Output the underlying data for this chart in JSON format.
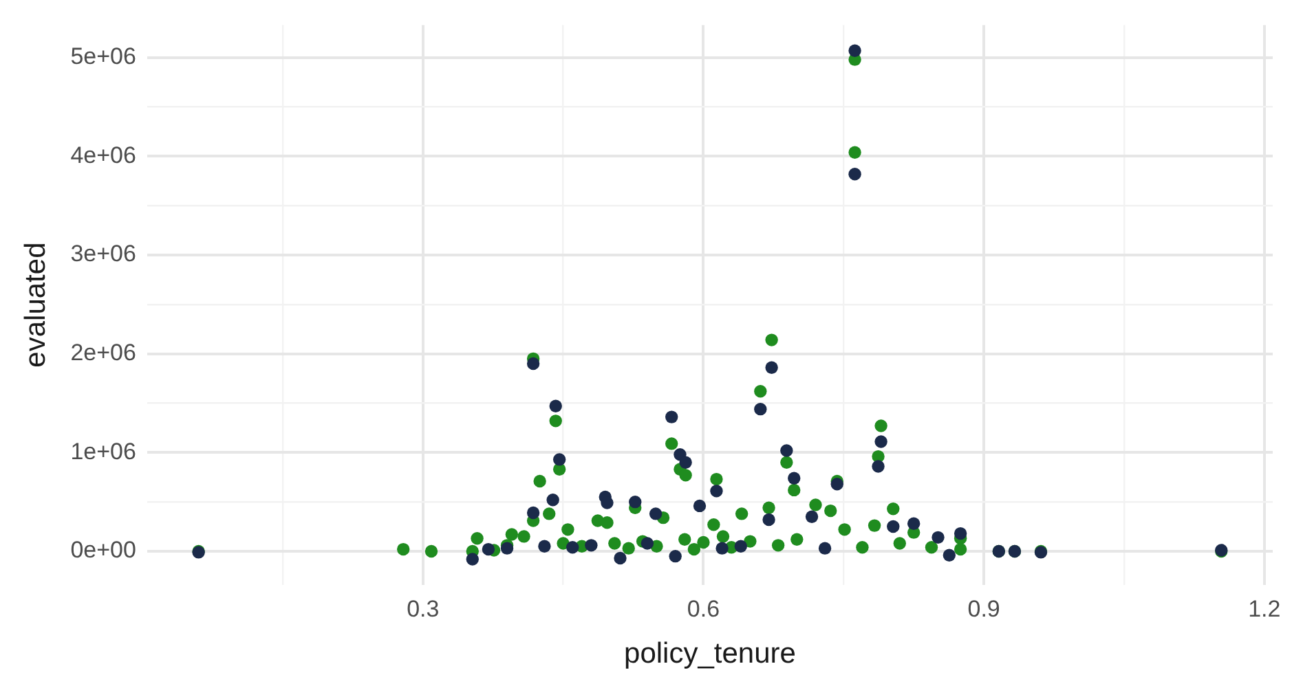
{
  "chart_data": {
    "type": "scatter",
    "xlabel": "policy_tenure",
    "ylabel": "evaluated",
    "grid": true,
    "legend": false,
    "marker": "circle",
    "xlim": [
      0.005,
      1.209
    ],
    "ylim": [
      -340000,
      5330000
    ],
    "xticks": [
      {
        "value": 0.15,
        "label": null
      },
      0.3,
      {
        "value": 0.45,
        "label": null
      },
      0.6,
      {
        "value": 0.75,
        "label": null
      },
      0.9,
      {
        "value": 1.05,
        "label": null
      },
      1.2
    ],
    "yticks": [
      {
        "value": 0,
        "label": "0e+00"
      },
      {
        "value": 500000,
        "label": null
      },
      {
        "value": 1000000,
        "label": "1e+06"
      },
      {
        "value": 1500000,
        "label": null
      },
      {
        "value": 2000000,
        "label": "2e+06"
      },
      {
        "value": 2500000,
        "label": null
      },
      {
        "value": 3000000,
        "label": "3e+06"
      },
      {
        "value": 3500000,
        "label": null
      },
      {
        "value": 4000000,
        "label": "4e+06"
      },
      {
        "value": 4500000,
        "label": null
      },
      {
        "value": 5000000,
        "label": "5e+06"
      }
    ],
    "series": [
      {
        "color": "#1b2a4a",
        "x": [
          0.06,
          0.353,
          0.37,
          0.39,
          0.418,
          0.418,
          0.43,
          0.439,
          0.442,
          0.446,
          0.46,
          0.48,
          0.495,
          0.497,
          0.511,
          0.527,
          0.54,
          0.549,
          0.566,
          0.57,
          0.575,
          0.581,
          0.596,
          0.614,
          0.62,
          0.64,
          0.661,
          0.67,
          0.673,
          0.689,
          0.697,
          0.716,
          0.73,
          0.743,
          0.762,
          0.762,
          0.787,
          0.79,
          0.803,
          0.825,
          0.851,
          0.863,
          0.875,
          0.916,
          0.933,
          0.961,
          1.154
        ],
        "values": [
          -10000,
          -80000,
          20000,
          30000,
          1900000,
          390000,
          50000,
          520000,
          1470000,
          930000,
          40000,
          60000,
          550000,
          490000,
          -70000,
          500000,
          80000,
          380000,
          1360000,
          -50000,
          980000,
          900000,
          460000,
          610000,
          30000,
          50000,
          1440000,
          320000,
          1860000,
          1020000,
          740000,
          350000,
          30000,
          680000,
          5070000,
          3820000,
          860000,
          1110000,
          250000,
          280000,
          140000,
          -40000,
          180000,
          0,
          0,
          -10000,
          10000
        ]
      },
      {
        "color": "#1f8c1f",
        "x": [
          0.06,
          0.279,
          0.309,
          0.353,
          0.358,
          0.376,
          0.39,
          0.395,
          0.408,
          0.418,
          0.418,
          0.425,
          0.435,
          0.442,
          0.446,
          0.45,
          0.455,
          0.47,
          0.487,
          0.497,
          0.505,
          0.52,
          0.527,
          0.535,
          0.55,
          0.557,
          0.566,
          0.575,
          0.58,
          0.581,
          0.59,
          0.6,
          0.611,
          0.614,
          0.621,
          0.63,
          0.641,
          0.65,
          0.661,
          0.67,
          0.673,
          0.68,
          0.689,
          0.697,
          0.7,
          0.72,
          0.736,
          0.743,
          0.751,
          0.762,
          0.762,
          0.77,
          0.783,
          0.787,
          0.79,
          0.803,
          0.81,
          0.825,
          0.844,
          0.875,
          0.875,
          0.916,
          0.933,
          0.961,
          1.154
        ],
        "values": [
          0,
          20000,
          0,
          0,
          130000,
          10000,
          60000,
          170000,
          150000,
          1950000,
          310000,
          710000,
          380000,
          1320000,
          830000,
          80000,
          220000,
          50000,
          310000,
          290000,
          80000,
          30000,
          440000,
          100000,
          50000,
          340000,
          1090000,
          830000,
          120000,
          770000,
          20000,
          90000,
          270000,
          730000,
          150000,
          40000,
          380000,
          100000,
          1620000,
          440000,
          2140000,
          60000,
          900000,
          620000,
          120000,
          470000,
          410000,
          710000,
          220000,
          4980000,
          4040000,
          40000,
          260000,
          960000,
          1270000,
          430000,
          80000,
          190000,
          40000,
          130000,
          20000,
          0,
          0,
          0,
          0
        ]
      }
    ]
  }
}
